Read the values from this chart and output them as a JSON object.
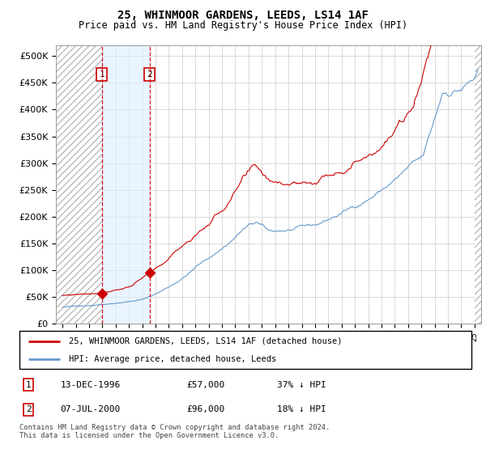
{
  "title": "25, WHINMOOR GARDENS, LEEDS, LS14 1AF",
  "subtitle": "Price paid vs. HM Land Registry's House Price Index (HPI)",
  "sale1_price": 57000,
  "sale1_t": 1996.958,
  "sale2_price": 96000,
  "sale2_t": 2000.542,
  "legend_line1": "25, WHINMOOR GARDENS, LEEDS, LS14 1AF (detached house)",
  "legend_line2": "HPI: Average price, detached house, Leeds",
  "red_color": "#cc0000",
  "blue_color": "#6699cc",
  "ylim_min": 0,
  "ylim_max": 520000,
  "xlim_min": 1993.5,
  "xlim_max": 2025.5,
  "footer": "Contains HM Land Registry data © Crown copyright and database right 2024.\nThis data is licensed under the Open Government Licence v3.0."
}
